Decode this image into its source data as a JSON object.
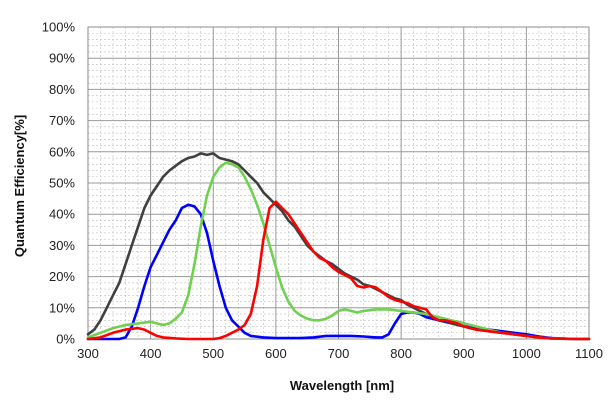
{
  "chart_data": {
    "type": "line",
    "xlabel": "Wavelength [nm]",
    "ylabel": "Quantum Efficiency[%]",
    "xlim": [
      300,
      1100
    ],
    "ylim": [
      0,
      100
    ],
    "x_ticks": [
      "300",
      "400",
      "500",
      "600",
      "700",
      "800",
      "900",
      "1000",
      "1100"
    ],
    "y_ticks": [
      "0%",
      "10%",
      "20%",
      "30%",
      "40%",
      "50%",
      "60%",
      "70%",
      "80%",
      "90%",
      "100%"
    ],
    "grid": true,
    "legend": "none",
    "series": [
      {
        "color": "#404040",
        "points": [
          [
            300,
            1.5
          ],
          [
            310,
            3
          ],
          [
            320,
            6
          ],
          [
            330,
            10
          ],
          [
            340,
            14
          ],
          [
            350,
            18
          ],
          [
            360,
            24
          ],
          [
            370,
            30
          ],
          [
            380,
            36
          ],
          [
            390,
            42
          ],
          [
            400,
            46
          ],
          [
            410,
            49
          ],
          [
            420,
            52
          ],
          [
            430,
            54
          ],
          [
            440,
            55.5
          ],
          [
            450,
            57
          ],
          [
            460,
            58
          ],
          [
            470,
            58.5
          ],
          [
            480,
            59.5
          ],
          [
            490,
            59
          ],
          [
            500,
            59.5
          ],
          [
            510,
            58
          ],
          [
            520,
            57.5
          ],
          [
            530,
            57
          ],
          [
            540,
            56
          ],
          [
            550,
            54
          ],
          [
            560,
            52
          ],
          [
            570,
            50
          ],
          [
            580,
            47
          ],
          [
            590,
            45
          ],
          [
            600,
            43
          ],
          [
            610,
            41
          ],
          [
            620,
            38
          ],
          [
            630,
            36
          ],
          [
            640,
            33
          ],
          [
            650,
            30
          ],
          [
            660,
            28
          ],
          [
            670,
            26.5
          ],
          [
            680,
            25
          ],
          [
            690,
            24
          ],
          [
            700,
            22.5
          ],
          [
            710,
            21
          ],
          [
            720,
            20
          ],
          [
            730,
            19
          ],
          [
            740,
            17.5
          ],
          [
            750,
            17
          ],
          [
            760,
            16
          ],
          [
            770,
            15
          ],
          [
            780,
            14
          ],
          [
            790,
            13
          ],
          [
            800,
            12.5
          ],
          [
            810,
            11
          ],
          [
            820,
            10
          ],
          [
            830,
            9
          ],
          [
            840,
            8
          ],
          [
            850,
            7
          ],
          [
            860,
            6
          ],
          [
            870,
            5.5
          ],
          [
            880,
            5
          ],
          [
            890,
            4.5
          ],
          [
            900,
            4
          ],
          [
            920,
            3
          ],
          [
            940,
            2.5
          ],
          [
            960,
            2
          ],
          [
            980,
            1.5
          ],
          [
            1000,
            1
          ],
          [
            1020,
            0.5
          ],
          [
            1040,
            0.2
          ],
          [
            1060,
            0.1
          ],
          [
            1080,
            0
          ],
          [
            1100,
            0
          ]
        ]
      },
      {
        "color": "#0000ff",
        "points": [
          [
            300,
            0
          ],
          [
            350,
            0
          ],
          [
            360,
            0.5
          ],
          [
            370,
            4
          ],
          [
            380,
            10
          ],
          [
            390,
            17
          ],
          [
            400,
            23
          ],
          [
            410,
            27
          ],
          [
            420,
            31
          ],
          [
            430,
            35
          ],
          [
            440,
            38
          ],
          [
            450,
            42
          ],
          [
            460,
            43
          ],
          [
            470,
            42.5
          ],
          [
            480,
            40
          ],
          [
            490,
            34
          ],
          [
            500,
            25
          ],
          [
            510,
            17
          ],
          [
            520,
            10
          ],
          [
            530,
            6
          ],
          [
            540,
            4
          ],
          [
            550,
            2
          ],
          [
            560,
            1
          ],
          [
            580,
            0.5
          ],
          [
            600,
            0.3
          ],
          [
            640,
            0.3
          ],
          [
            660,
            0.5
          ],
          [
            680,
            1
          ],
          [
            700,
            1
          ],
          [
            720,
            1
          ],
          [
            740,
            0.8
          ],
          [
            760,
            0.5
          ],
          [
            770,
            0.5
          ],
          [
            780,
            1.5
          ],
          [
            790,
            5
          ],
          [
            800,
            8
          ],
          [
            810,
            8.5
          ],
          [
            820,
            8.5
          ],
          [
            830,
            8
          ],
          [
            840,
            7
          ],
          [
            860,
            6
          ],
          [
            880,
            5.5
          ],
          [
            890,
            5.5
          ],
          [
            900,
            5
          ],
          [
            920,
            3.5
          ],
          [
            940,
            3
          ],
          [
            960,
            2.5
          ],
          [
            980,
            2
          ],
          [
            1000,
            1.5
          ],
          [
            1020,
            0.8
          ],
          [
            1040,
            0.3
          ],
          [
            1060,
            0.1
          ],
          [
            1080,
            0
          ],
          [
            1100,
            0
          ]
        ]
      },
      {
        "color": "#70d050",
        "points": [
          [
            300,
            0.5
          ],
          [
            320,
            2
          ],
          [
            340,
            3.5
          ],
          [
            360,
            4.5
          ],
          [
            380,
            5
          ],
          [
            400,
            5.5
          ],
          [
            410,
            5
          ],
          [
            420,
            4.5
          ],
          [
            430,
            5
          ],
          [
            440,
            6.5
          ],
          [
            450,
            8.5
          ],
          [
            460,
            14
          ],
          [
            470,
            24
          ],
          [
            480,
            36
          ],
          [
            490,
            46
          ],
          [
            500,
            52
          ],
          [
            510,
            55
          ],
          [
            520,
            56.5
          ],
          [
            530,
            56
          ],
          [
            540,
            55
          ],
          [
            550,
            52
          ],
          [
            560,
            48
          ],
          [
            570,
            43
          ],
          [
            580,
            37
          ],
          [
            590,
            30
          ],
          [
            600,
            23
          ],
          [
            610,
            16.5
          ],
          [
            620,
            12
          ],
          [
            630,
            9
          ],
          [
            640,
            7.5
          ],
          [
            650,
            6.5
          ],
          [
            660,
            6
          ],
          [
            670,
            6
          ],
          [
            680,
            6.5
          ],
          [
            690,
            7.5
          ],
          [
            700,
            9
          ],
          [
            710,
            9.5
          ],
          [
            720,
            9
          ],
          [
            730,
            8.5
          ],
          [
            740,
            9
          ],
          [
            760,
            9.5
          ],
          [
            780,
            9.5
          ],
          [
            800,
            9
          ],
          [
            820,
            8.5
          ],
          [
            840,
            8
          ],
          [
            860,
            7
          ],
          [
            880,
            6
          ],
          [
            900,
            5
          ],
          [
            920,
            4
          ],
          [
            940,
            3
          ],
          [
            960,
            2
          ],
          [
            980,
            1.5
          ],
          [
            1000,
            1
          ],
          [
            1020,
            0.5
          ],
          [
            1040,
            0.2
          ],
          [
            1060,
            0.1
          ],
          [
            1080,
            0
          ],
          [
            1100,
            0
          ]
        ]
      },
      {
        "color": "#ff0000",
        "points": [
          [
            300,
            0
          ],
          [
            320,
            0.5
          ],
          [
            340,
            2
          ],
          [
            360,
            3
          ],
          [
            380,
            3.5
          ],
          [
            390,
            3
          ],
          [
            400,
            2
          ],
          [
            410,
            1
          ],
          [
            420,
            0.5
          ],
          [
            440,
            0.2
          ],
          [
            460,
            0
          ],
          [
            480,
            0
          ],
          [
            500,
            0
          ],
          [
            510,
            0.3
          ],
          [
            520,
            1
          ],
          [
            530,
            2
          ],
          [
            540,
            3
          ],
          [
            550,
            4.5
          ],
          [
            560,
            8
          ],
          [
            570,
            17
          ],
          [
            580,
            32
          ],
          [
            590,
            42
          ],
          [
            600,
            44
          ],
          [
            610,
            42
          ],
          [
            620,
            40
          ],
          [
            630,
            37
          ],
          [
            640,
            34
          ],
          [
            650,
            31
          ],
          [
            660,
            28
          ],
          [
            670,
            26
          ],
          [
            680,
            25
          ],
          [
            690,
            23
          ],
          [
            700,
            21.5
          ],
          [
            710,
            20.5
          ],
          [
            720,
            19.5
          ],
          [
            730,
            17
          ],
          [
            740,
            16.5
          ],
          [
            750,
            17
          ],
          [
            760,
            16.5
          ],
          [
            770,
            15
          ],
          [
            780,
            13.5
          ],
          [
            790,
            12.5
          ],
          [
            800,
            12
          ],
          [
            810,
            11.5
          ],
          [
            820,
            10.5
          ],
          [
            830,
            10
          ],
          [
            840,
            9.5
          ],
          [
            850,
            7
          ],
          [
            860,
            6
          ],
          [
            870,
            6
          ],
          [
            880,
            5.5
          ],
          [
            890,
            5
          ],
          [
            900,
            4
          ],
          [
            920,
            3
          ],
          [
            940,
            2.5
          ],
          [
            960,
            2
          ],
          [
            980,
            1.5
          ],
          [
            1000,
            1
          ],
          [
            1020,
            0.5
          ],
          [
            1040,
            0.2
          ],
          [
            1060,
            0.1
          ],
          [
            1080,
            0
          ],
          [
            1100,
            0
          ]
        ]
      }
    ]
  }
}
